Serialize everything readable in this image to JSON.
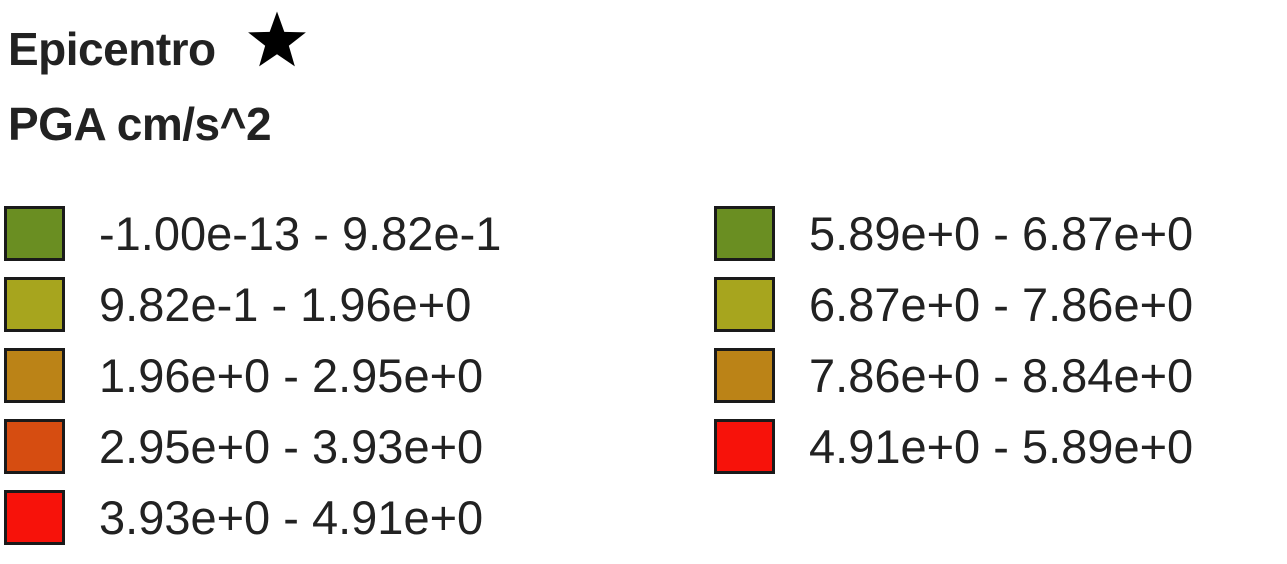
{
  "legend": {
    "title": "Epicentro",
    "title_icon": "star-icon",
    "subtitle": "PGA cm/s^2",
    "left_items": [
      {
        "label": "-1.00e-13 - 9.82e-1",
        "color": "#6a8e22"
      },
      {
        "label": "9.82e-1 - 1.96e+0",
        "color": "#a7a51e"
      },
      {
        "label": "1.96e+0 - 2.95e+0",
        "color": "#bb8317"
      },
      {
        "label": "2.95e+0 - 3.93e+0",
        "color": "#d64d11"
      },
      {
        "label": "3.93e+0 - 4.91e+0",
        "color": "#f7120a"
      }
    ],
    "right_items": [
      {
        "label": "5.89e+0 - 6.87e+0",
        "color": "#6a8e22"
      },
      {
        "label": "6.87e+0 - 7.86e+0",
        "color": "#a7a51e"
      },
      {
        "label": "7.86e+0 - 8.84e+0",
        "color": "#bb8317"
      },
      {
        "label": "4.91e+0 - 5.89e+0",
        "color": "#f7120a"
      }
    ]
  }
}
